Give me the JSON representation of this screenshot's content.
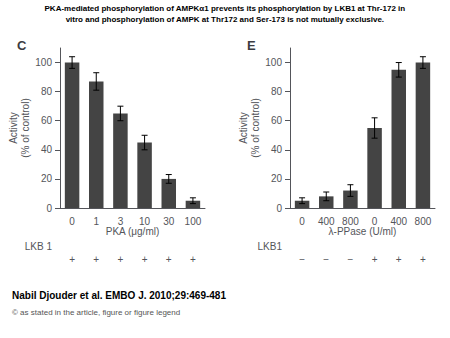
{
  "chart_data": [
    {
      "type": "bar",
      "title": "C",
      "xlabel": "PKA (μg/ml)",
      "ylabel": "Activity\n(% of control)",
      "categories": [
        "0",
        "1",
        "3",
        "10",
        "30",
        "100"
      ],
      "values": [
        100,
        87,
        65,
        45,
        20,
        5
      ],
      "errors": [
        4,
        6,
        5,
        5,
        3,
        2
      ],
      "color": "#444444",
      "ylim": [
        0,
        110
      ],
      "yticks": [
        0,
        20,
        40,
        60,
        80,
        100
      ],
      "grid": false,
      "annotations": [
        {
          "text": "LKB 1",
          "values": [
            "+",
            "+",
            "+",
            "+",
            "+",
            "+"
          ]
        },
        {
          "text": "PKA-mediated phosphorylation of AMPKα1 prevents its phosphorylation by LKB1 at Thr-172 in"
        },
        {
          "text": "vitro and phosphorylation of AMPK at Thr172 and Ser-173 is not mutually exclusive."
        },
        {
          "text": "Nabil Djouder et al. EMBO J. 2010;29:469-481"
        },
        {
          "text": "© as stated in the article, figure or figure legend"
        }
      ]
    },
    {
      "type": "bar",
      "title": "E",
      "xlabel": "λ-PPase (U/ml)",
      "ylabel": "Activity\n(% of control)",
      "categories": [
        "0",
        "400",
        "800",
        "0",
        "400",
        "800"
      ],
      "values": [
        5,
        8,
        12,
        55,
        95,
        100
      ],
      "errors": [
        2,
        3,
        4,
        7,
        5,
        4
      ],
      "color": "#444444",
      "ylim": [
        0,
        110
      ],
      "yticks": [
        0,
        20,
        40,
        60,
        80,
        100
      ],
      "grid": false,
      "annotations": [
        {
          "text": "LKB1",
          "values": [
            "−",
            "−",
            "−",
            "+",
            "+",
            "+"
          ]
        }
      ]
    }
  ]
}
